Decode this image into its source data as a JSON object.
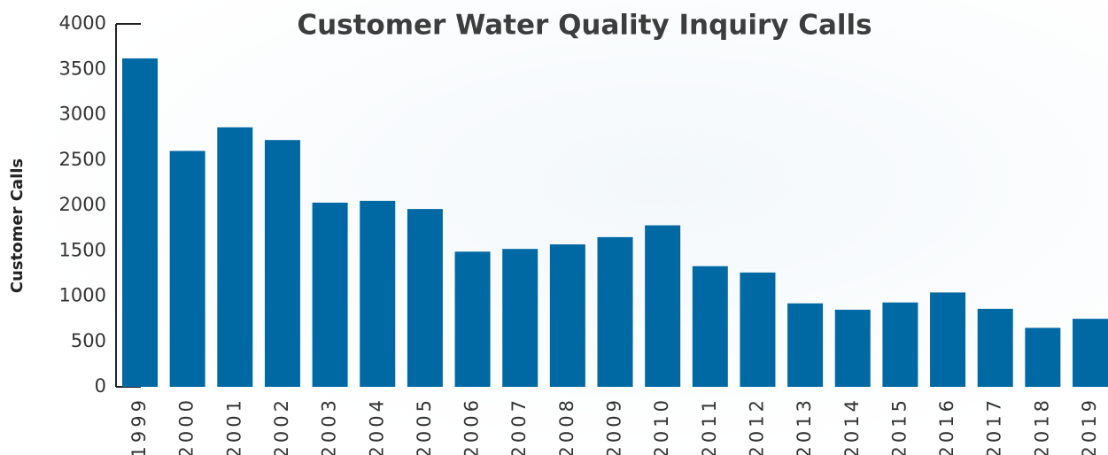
{
  "chart_data": {
    "type": "bar",
    "title": "Customer Water Quality Inquiry Calls",
    "y_label": "Customer Calls",
    "categories": [
      "1999",
      "2000",
      "2001",
      "2002",
      "2003",
      "2004",
      "2005",
      "2006",
      "2007",
      "2008",
      "2009",
      "2010",
      "2011",
      "2012",
      "2013",
      "2014",
      "2015",
      "2016",
      "2017",
      "2018",
      "2019"
    ],
    "values": [
      3620,
      2600,
      2860,
      2720,
      2030,
      2050,
      1960,
      1490,
      1520,
      1570,
      1650,
      1780,
      1330,
      1260,
      920,
      850,
      930,
      1040,
      860,
      650,
      750
    ],
    "color": "#0069a4",
    "ylim": [
      0,
      4000
    ],
    "yticks": [
      0,
      500,
      1000,
      1500,
      2000,
      2500,
      3000,
      3500,
      4000
    ],
    "grid": false
  }
}
